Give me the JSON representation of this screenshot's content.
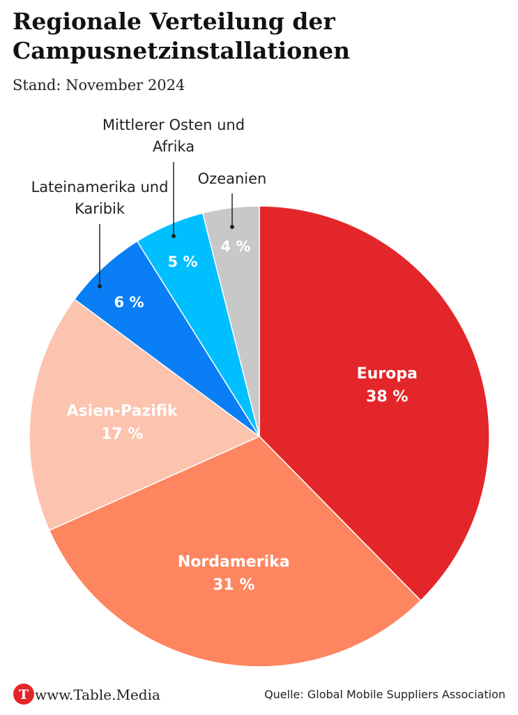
{
  "chart_data": {
    "type": "pie",
    "title": "Regionale Verteilung der Campusnetzinstallationen",
    "subtitle": "Stand: November 2024",
    "categories": [
      "Europa",
      "Nordamerika",
      "Asien-Pazifik",
      "Lateinamerika und Karibik",
      "Mittlerer Osten und Afrika",
      "Ozeanien"
    ],
    "values": [
      38,
      31,
      17,
      6,
      5,
      4
    ],
    "value_labels": [
      "38 %",
      "31 %",
      "17 %",
      "6 %",
      "5 %",
      "4 %"
    ],
    "colors": [
      "#e3262a",
      "#fd8660",
      "#fcc3ae",
      "#0a7ff5",
      "#00bfff",
      "#c8c8c8"
    ],
    "source": "Quelle: Global Mobile Suppliers Association",
    "brand": "www.Table.Media"
  }
}
